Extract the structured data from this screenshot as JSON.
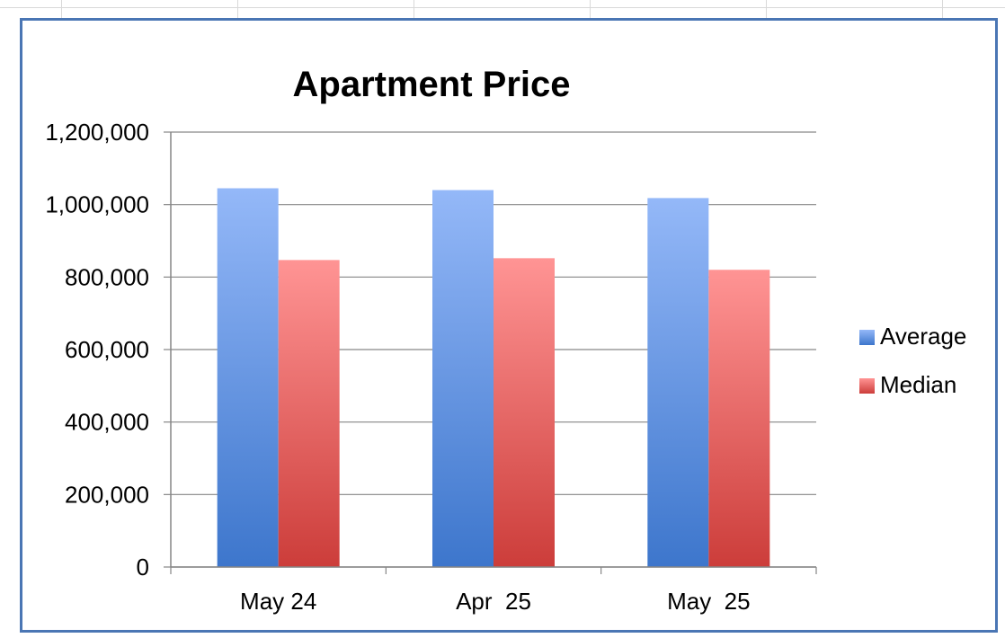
{
  "chart_data": {
    "type": "bar",
    "title": "Apartment Price",
    "xlabel": "",
    "ylabel": "",
    "categories": [
      "May 24",
      "Apr  25",
      "May  25"
    ],
    "series": [
      {
        "name": "Average",
        "values": [
          1045000,
          1040000,
          1018000
        ],
        "color_top": "#94b8f8",
        "color_bottom": "#3d76cc"
      },
      {
        "name": "Median",
        "values": [
          847000,
          852000,
          820000
        ],
        "color_top": "#ff9494",
        "color_bottom": "#cc3d3a"
      }
    ],
    "ylim": [
      0,
      1200000
    ],
    "yticks": [
      0,
      200000,
      400000,
      600000,
      800000,
      1000000,
      1200000
    ],
    "ytick_labels": [
      "0",
      "200,000",
      "400,000",
      "600,000",
      "800,000",
      "1,000,000",
      "1,200,000"
    ],
    "grid": true,
    "legend": "right"
  }
}
